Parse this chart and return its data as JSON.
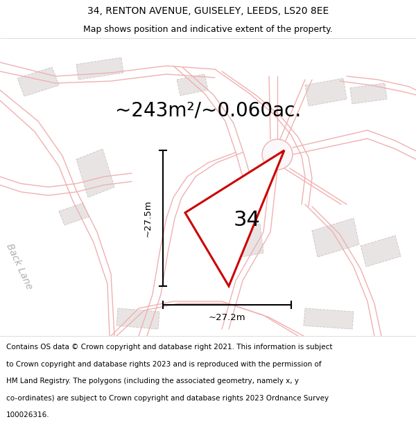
{
  "title_line1": "34, RENTON AVENUE, GUISELEY, LEEDS, LS20 8EE",
  "title_line2": "Map shows position and indicative extent of the property.",
  "area_label": "~243m²/~0.060ac.",
  "plot_number": "34",
  "dim_vertical": "~27.5m",
  "dim_horizontal": "~27.2m",
  "back_lane_label": "Back Lane",
  "footer_lines": [
    "Contains OS data © Crown copyright and database right 2021. This information is subject",
    "to Crown copyright and database rights 2023 and is reproduced with the permission of",
    "HM Land Registry. The polygons (including the associated geometry, namely x, y",
    "co-ordinates) are subject to Crown copyright and database rights 2023 Ordnance Survey",
    "100026316."
  ],
  "map_bg_color": "#faf8f8",
  "plot_fill": "#ffffff",
  "plot_edge_color": "#cc0000",
  "road_line_color": "#f0b0b0",
  "road_line_color2": "#e8c0c0",
  "building_fill": "#e8e4e4",
  "building_edge": "#d0c8c8",
  "dim_line_color": "#000000",
  "back_lane_color": "#b0b0b0",
  "title_fontsize": 10,
  "subtitle_fontsize": 9,
  "area_fontsize": 20,
  "plot_num_fontsize": 22,
  "dim_fontsize": 9.5,
  "footer_fontsize": 7.5,
  "back_lane_fontsize": 10
}
